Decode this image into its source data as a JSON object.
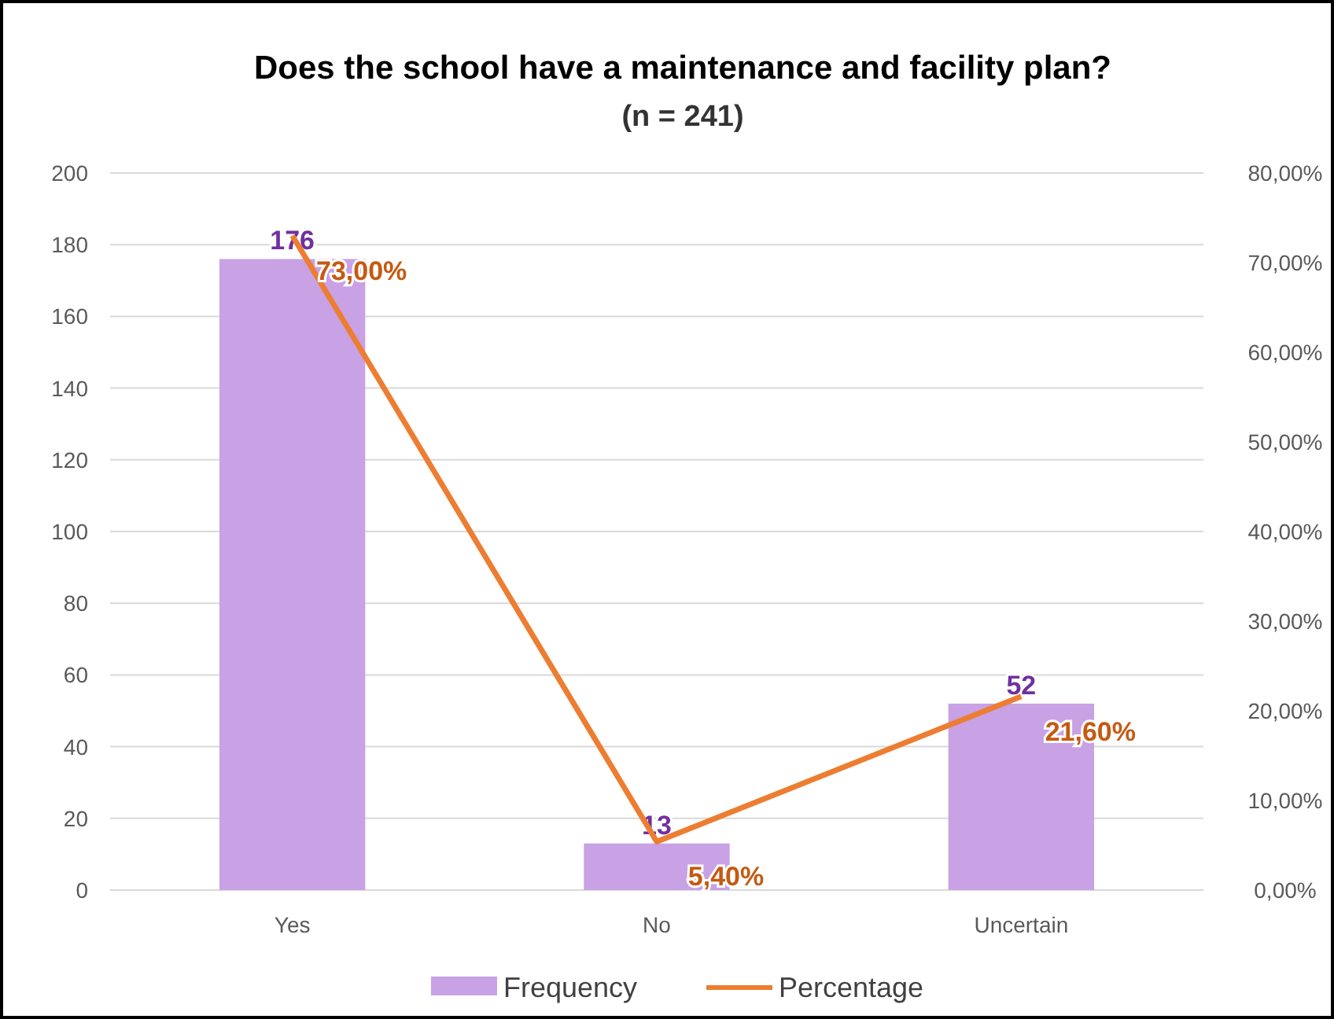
{
  "chart_data": {
    "type": "bar",
    "title": "Does the school have a maintenance and facility plan?",
    "subtitle": "(n = 241)",
    "categories": [
      "Yes",
      "No",
      "Uncertain"
    ],
    "series": [
      {
        "name": "Frequency",
        "color": "#c8a2e4",
        "values": [
          176,
          13,
          52
        ],
        "value_labels": [
          "176",
          "13",
          "52"
        ]
      },
      {
        "name": "Percentage",
        "type": "line",
        "axis": "y2",
        "color": "#ed7d31",
        "values": [
          73.0,
          5.4,
          21.6
        ],
        "value_labels": [
          "73,00%",
          "5,40%",
          "21,60%"
        ]
      }
    ],
    "ylim": [
      0,
      200
    ],
    "yticks": [
      0,
      20,
      40,
      60,
      80,
      100,
      120,
      140,
      160,
      180,
      200
    ],
    "y2lim": [
      0,
      80
    ],
    "y2ticks": [
      {
        "value": 0,
        "label": "0,00%"
      },
      {
        "value": 10,
        "label": "10,00%"
      },
      {
        "value": 20,
        "label": "20,00%"
      },
      {
        "value": 30,
        "label": "30,00%"
      },
      {
        "value": 40,
        "label": "40,00%"
      },
      {
        "value": 50,
        "label": "50,00%"
      },
      {
        "value": 60,
        "label": "60,00%"
      },
      {
        "value": 70,
        "label": "70,00%"
      },
      {
        "value": 80,
        "label": "80,00%"
      }
    ],
    "grid": "y",
    "legend": "bottom",
    "marker": "none",
    "line_style": "solid"
  }
}
